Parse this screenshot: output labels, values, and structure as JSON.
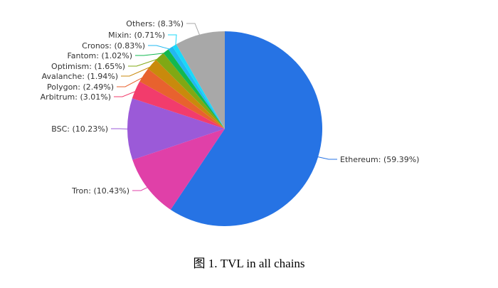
{
  "chart_data": {
    "type": "pie",
    "start": "top",
    "direction": "clockwise",
    "slices": [
      {
        "label": "Ethereum: (59.39%)",
        "name": "Ethereum",
        "value": 59.39,
        "color": "#2673e4"
      },
      {
        "label": "Tron: (10.43%)",
        "name": "Tron",
        "value": 10.43,
        "color": "#e040a8"
      },
      {
        "label": "BSC: (10.23%)",
        "name": "BSC",
        "value": 10.23,
        "color": "#9b5ad8"
      },
      {
        "label": "Arbitrum: (3.01%)",
        "name": "Arbitrum",
        "value": 3.01,
        "color": "#f23c6c"
      },
      {
        "label": "Polygon: (2.49%)",
        "name": "Polygon",
        "value": 2.49,
        "color": "#e8622e"
      },
      {
        "label": "Avalanche: (1.94%)",
        "name": "Avalanche",
        "value": 1.94,
        "color": "#c98a0c"
      },
      {
        "label": "Optimism: (1.65%)",
        "name": "Optimism",
        "value": 1.65,
        "color": "#80a814"
      },
      {
        "label": "Fantom: (1.02%)",
        "name": "Fantom",
        "value": 1.02,
        "color": "#12b850"
      },
      {
        "label": "Cronos: (0.83%)",
        "name": "Cronos",
        "value": 0.83,
        "color": "#22b8f0"
      },
      {
        "label": "Mixin: (0.71%)",
        "name": "Mixin",
        "value": 0.71,
        "color": "#1ad8fa"
      },
      {
        "label": "Others: (8.3%)",
        "name": "Others",
        "value": 8.3,
        "color": "#a8a8a8"
      }
    ]
  },
  "caption": "图 1. TVL in all chains"
}
